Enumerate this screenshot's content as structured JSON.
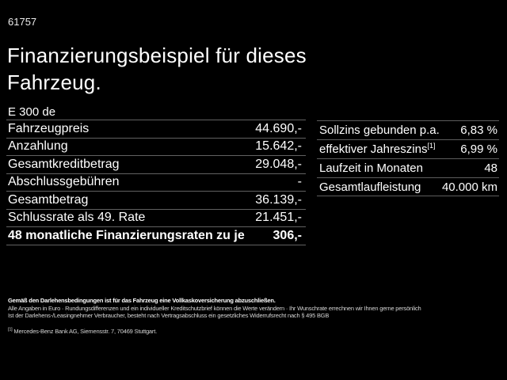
{
  "header": {
    "reference": "61757",
    "title": "Finanzierungsbeispiel für dieses Fahrzeug."
  },
  "finance_table": {
    "model": "E 300 de",
    "rows": [
      {
        "label": "Fahrzeugpreis",
        "value": "44.690,-"
      },
      {
        "label": "Anzahlung",
        "value": "15.642,-"
      },
      {
        "label": "Gesamtkreditbetrag",
        "value": "29.048,-"
      },
      {
        "label": "Abschlussgebühren",
        "value": "-"
      },
      {
        "label": "Gesamtbetrag",
        "value": "36.139,-"
      },
      {
        "label": "Schlussrate als 49. Rate",
        "value": "21.451,-"
      },
      {
        "label": "48 monatliche Finanzierungsraten zu je",
        "value": "306,-"
      }
    ]
  },
  "conditions_table": {
    "rows": [
      {
        "label": "Sollzins gebunden p.a.",
        "sup": "",
        "value": "6,83 %"
      },
      {
        "label": "effektiver Jahreszins",
        "sup": "[1]",
        "value": "6,99 %"
      },
      {
        "label": "Laufzeit in Monaten",
        "sup": "",
        "value": "48"
      },
      {
        "label": "Gesamtlaufleistung",
        "sup": "",
        "value": "40.000 km"
      }
    ]
  },
  "footnotes": {
    "insurance": "Gemäß den Darlehensbedingungen ist für das Fahrzeug eine Vollkaskoversicherung abzuschließen.",
    "info": "Alle Angaben in Euro · Rundungsdifferenzen und ein individueller Kreditschutzbrief können die Werte verändern · Ihr Wunschrate errechnen wir Ihnen gerne persönlich",
    "withdrawal": "Ist der Darlehens-/Leasingnehmer Verbraucher, besteht nach Vertragsabschluss ein gesetzliches Widerrufsrecht nach § 495 BGB",
    "source_marker": "[1]",
    "source": "Mercedes-Benz Bank AG, Siemensstr. 7, 70469 Stuttgart."
  },
  "colors": {
    "background": "#000000",
    "text": "#ffffff",
    "divider": "#5f5f5f",
    "footnote_text": "#d6d6d6"
  }
}
